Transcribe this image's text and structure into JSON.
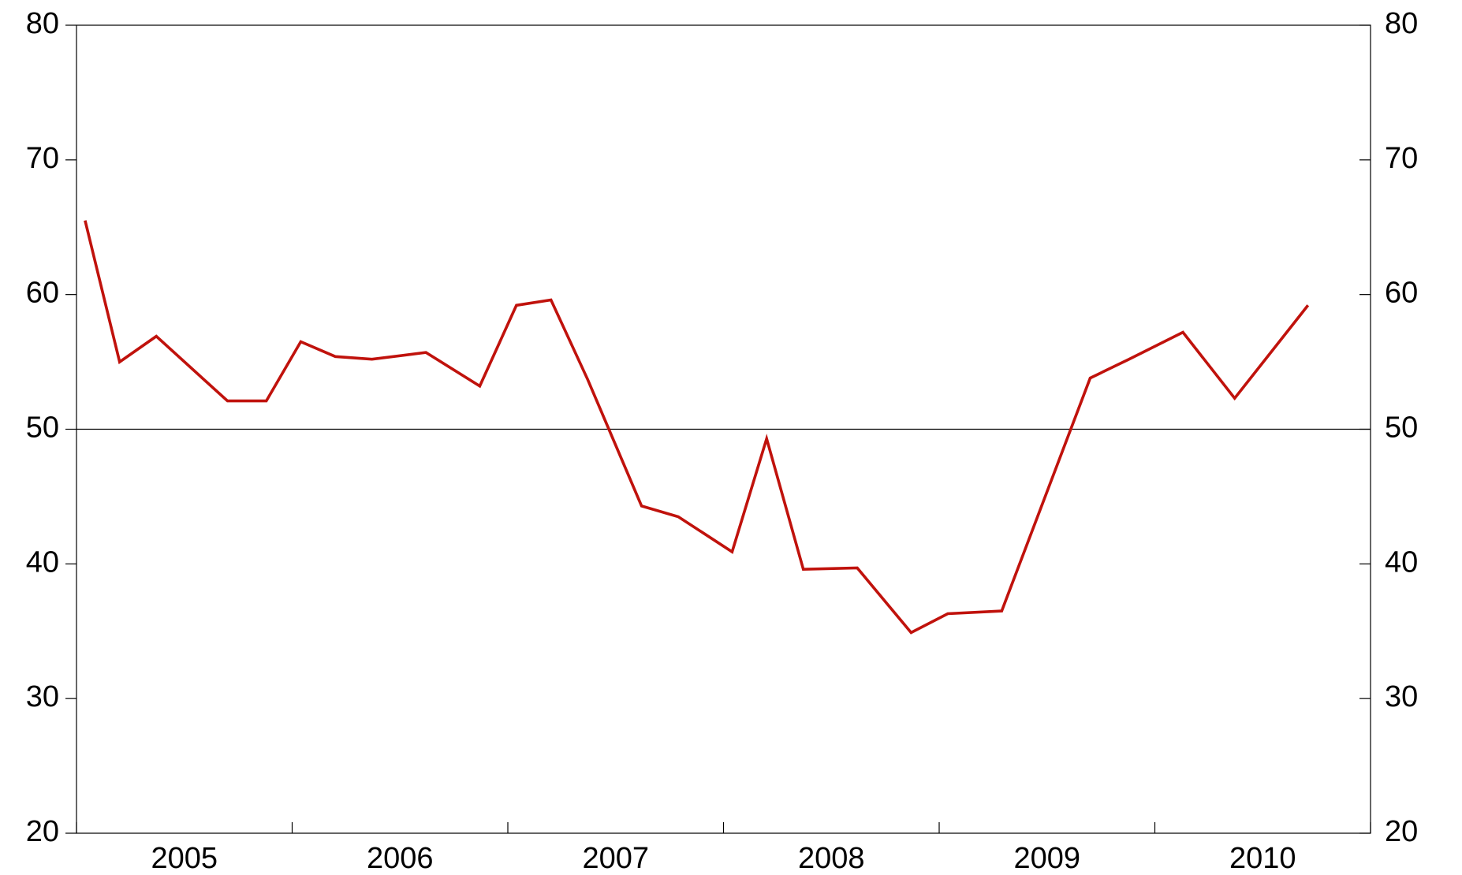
{
  "chart_data": {
    "type": "line",
    "x": [
      2005.04,
      2005.2,
      2005.37,
      2005.7,
      2005.88,
      2006.04,
      2006.2,
      2006.37,
      2006.62,
      2006.87,
      2007.04,
      2007.2,
      2007.37,
      2007.62,
      2007.79,
      2008.04,
      2008.2,
      2008.37,
      2008.62,
      2008.87,
      2009.04,
      2009.29,
      2009.7,
      2009.88,
      2010.13,
      2010.37,
      2010.71
    ],
    "series": [
      {
        "color": "#c0120c",
        "values": [
          65.5,
          55.0,
          56.9,
          52.1,
          52.1,
          56.5,
          55.4,
          55.2,
          55.7,
          53.2,
          59.2,
          59.6,
          53.7,
          44.3,
          43.5,
          40.9,
          49.3,
          39.6,
          39.7,
          34.9,
          36.3,
          36.5,
          53.8,
          55.2,
          57.2,
          52.3,
          59.2
        ]
      }
    ],
    "xlim": [
      2005,
      2011
    ],
    "xticks": [
      {
        "value": 2005.5,
        "label": "2005"
      },
      {
        "value": 2006.5,
        "label": "2006"
      },
      {
        "value": 2007.5,
        "label": "2007"
      },
      {
        "value": 2008.5,
        "label": "2008"
      },
      {
        "value": 2009.5,
        "label": "2009"
      },
      {
        "value": 2010.5,
        "label": "2010"
      }
    ],
    "x_tick_marks": [
      2005,
      2006,
      2007,
      2008,
      2009,
      2010,
      2011
    ],
    "ylim": [
      20,
      80
    ],
    "yticks": [
      20,
      30,
      40,
      50,
      60,
      70,
      80
    ],
    "y2lim": [
      20,
      80
    ],
    "y2ticks": [
      20,
      30,
      40,
      50,
      60,
      70,
      80
    ],
    "reference_line": 50
  }
}
